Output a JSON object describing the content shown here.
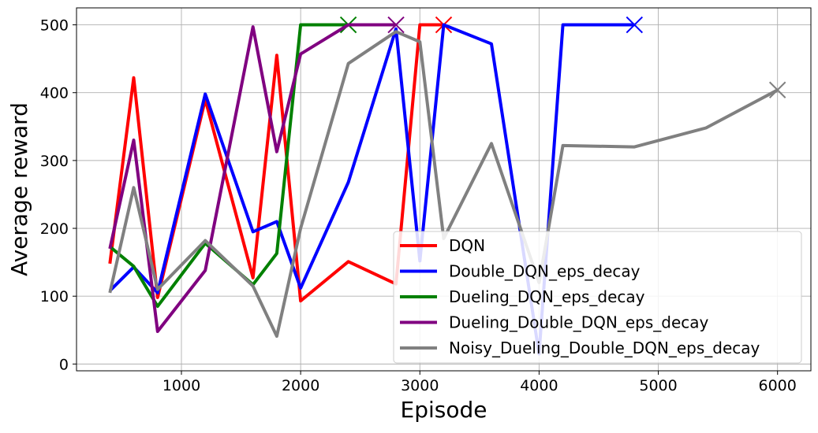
{
  "chart_data": {
    "type": "line",
    "title": "",
    "xlabel": "Episode",
    "ylabel": "Average reward",
    "xlim": [
      120,
      6280
    ],
    "ylim": [
      -10,
      525
    ],
    "xticks": [
      1000,
      2000,
      3000,
      4000,
      5000,
      6000
    ],
    "yticks": [
      0,
      100,
      200,
      300,
      400,
      500
    ],
    "grid": true,
    "legend_position": "lower-right",
    "series": [
      {
        "name": "DQN",
        "color": "#ff0000",
        "x": [
          400,
          600,
          800,
          1200,
          1600,
          1800,
          2000,
          2400,
          2800,
          3000,
          3200
        ],
        "y": [
          148,
          422,
          98,
          390,
          127,
          455,
          93,
          151,
          118,
          500,
          500
        ],
        "end_marker": true
      },
      {
        "name": "Double_DQN_eps_decay",
        "color": "#0000ff",
        "x": [
          400,
          600,
          800,
          1200,
          1600,
          1800,
          2000,
          2400,
          2800,
          3000,
          3200,
          3600,
          4000,
          4200,
          4800
        ],
        "y": [
          108,
          143,
          105,
          398,
          195,
          210,
          112,
          268,
          494,
          152,
          500,
          472,
          15,
          500,
          500
        ],
        "end_marker": true
      },
      {
        "name": "Dueling_DQN_eps_decay",
        "color": "#008000",
        "x": [
          400,
          600,
          800,
          1200,
          1600,
          1800,
          2000,
          2400
        ],
        "y": [
          173,
          144,
          85,
          178,
          117,
          163,
          500,
          500
        ],
        "end_marker": true
      },
      {
        "name": "Dueling_Double_DQN_eps_decay",
        "color": "#800080",
        "x": [
          400,
          600,
          800,
          1200,
          1600,
          1800,
          2000,
          2400,
          2800
        ],
        "y": [
          170,
          330,
          48,
          138,
          497,
          313,
          457,
          500,
          500
        ],
        "end_marker": true
      },
      {
        "name": "Noisy_Dueling_Double_DQN_eps_decay",
        "color": "#808080",
        "x": [
          400,
          600,
          800,
          1200,
          1600,
          1800,
          2000,
          2400,
          2800,
          3000,
          3200,
          3600,
          4000,
          4200,
          4800,
          5400,
          6000
        ],
        "y": [
          105,
          260,
          110,
          182,
          115,
          41,
          200,
          443,
          490,
          475,
          185,
          325,
          120,
          322,
          320,
          348,
          404
        ],
        "end_marker": true
      }
    ]
  }
}
